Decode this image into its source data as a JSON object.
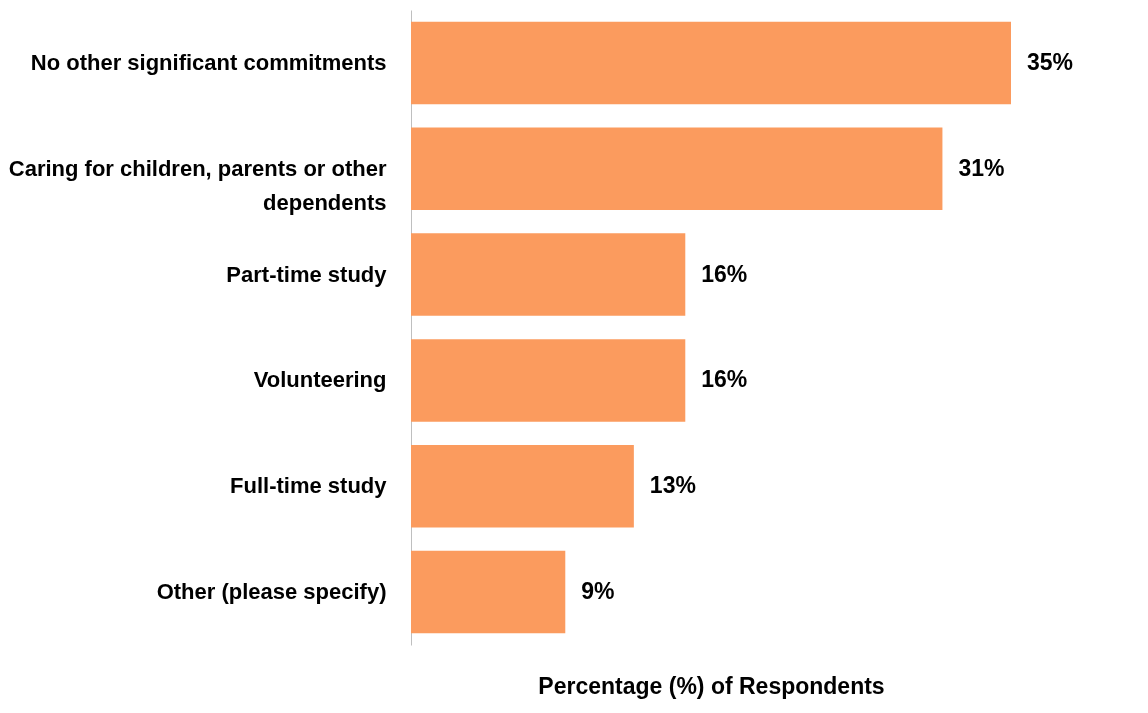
{
  "chart_data": {
    "type": "bar",
    "orientation": "horizontal",
    "xlabel": "Percentage (%) of Respondents",
    "categories": [
      "No other significant commitments",
      "Caring for children, parents or other dependents",
      "Part-time study",
      "Volunteering",
      "Full-time study",
      "Other (please specify)"
    ],
    "values": [
      35,
      31,
      16,
      16,
      13,
      9
    ],
    "value_labels": [
      "35%",
      "31%",
      "16%",
      "16%",
      "13%",
      "9%"
    ],
    "color": "#fb9b5e",
    "grid": false
  }
}
